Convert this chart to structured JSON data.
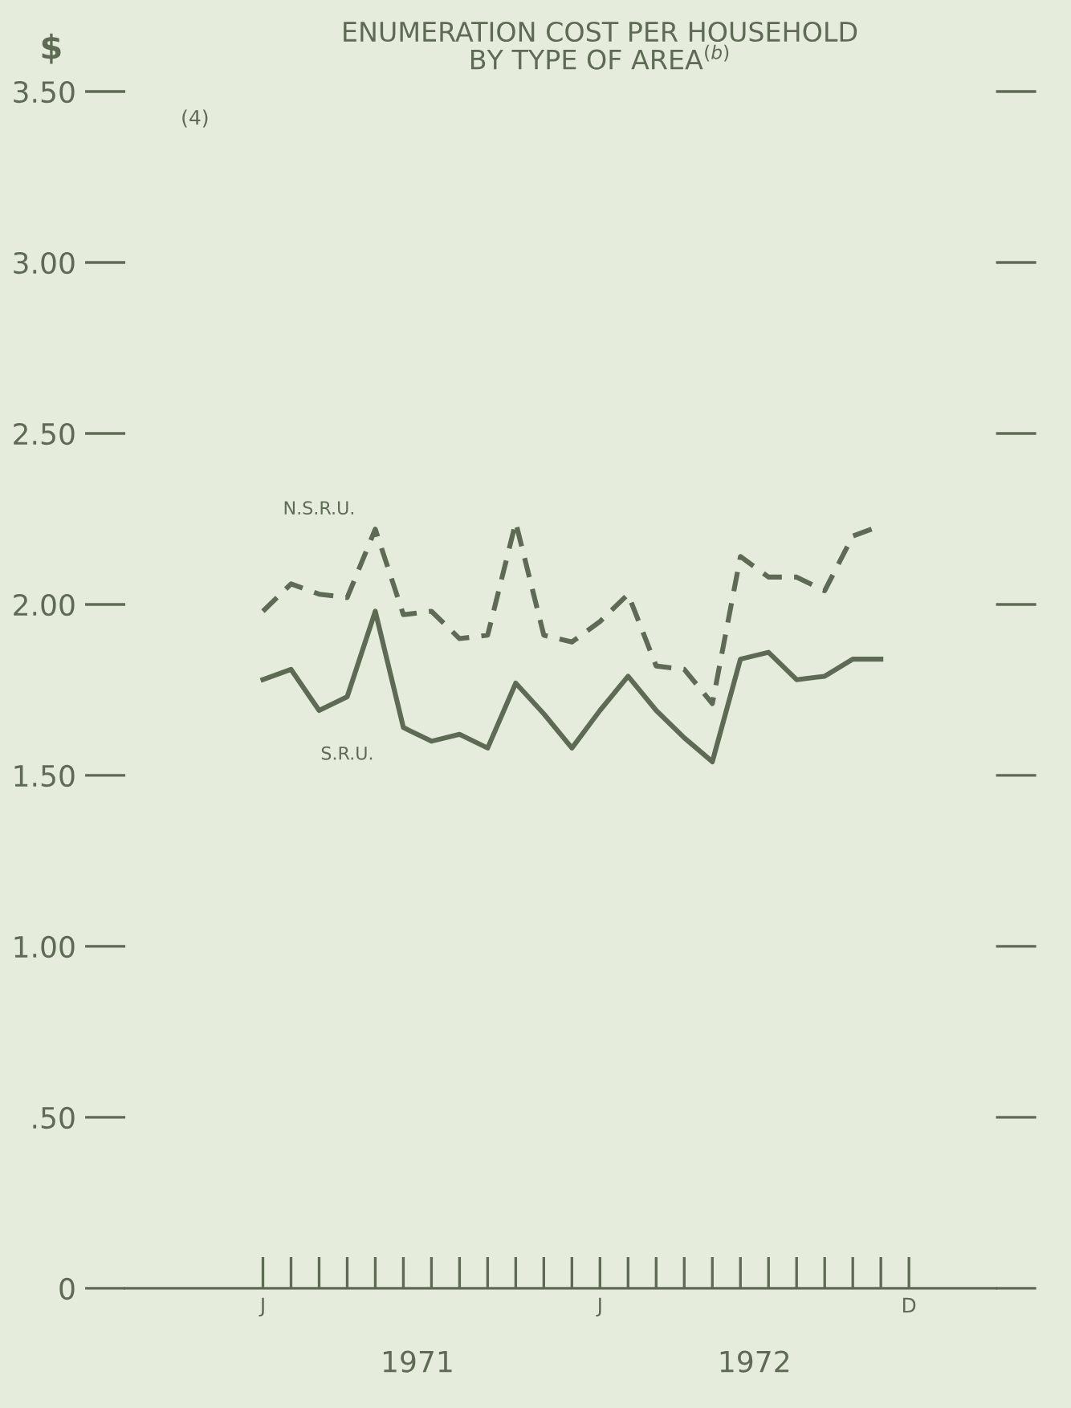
{
  "chart_data": {
    "type": "line",
    "title": "ENUMERATION COST PER HOUSEHOLD\nBY TYPE OF AREA$^{(b)}$",
    "ylabel": "$",
    "annotations": [
      "(4)",
      "1971",
      "1972"
    ],
    "categories": [
      "J",
      null,
      null,
      null,
      null,
      null,
      null,
      null,
      null,
      null,
      null,
      null,
      "J",
      null,
      null,
      null,
      null,
      null,
      null,
      null,
      null,
      null,
      null,
      "D"
    ],
    "series": [
      {
        "name": "N.S.R.U.",
        "color": "#5f6a55",
        "line_style": "dashed",
        "values": [
          1.98,
          2.06,
          2.03,
          2.02,
          2.22,
          1.97,
          1.98,
          1.9,
          1.91,
          2.24,
          1.91,
          1.89,
          1.95,
          2.03,
          1.82,
          1.81,
          1.71,
          2.14,
          2.08,
          2.08,
          2.04,
          2.2,
          2.23,
          null
        ]
      },
      {
        "name": "S.R.U.",
        "color": "#5f6a55",
        "line_style": "solid",
        "values": [
          1.78,
          1.81,
          1.69,
          1.73,
          1.98,
          1.64,
          1.6,
          1.62,
          1.58,
          1.77,
          1.68,
          1.58,
          1.69,
          1.79,
          1.69,
          1.61,
          1.54,
          1.84,
          1.86,
          1.78,
          1.79,
          1.84,
          1.84,
          null
        ]
      }
    ],
    "ylim": [
      0,
      3.5
    ],
    "yticks": [
      0,
      {
        "value": 0.5,
        "label": ".50"
      },
      {
        "value": 1,
        "label": "1.00"
      },
      {
        "value": 1.5,
        "label": "1.50"
      },
      {
        "value": 2,
        "label": "2.00"
      },
      {
        "value": 2.5,
        "label": "2.50"
      },
      {
        "value": 3,
        "label": "3.00"
      },
      {
        "value": 3.5,
        "label": "3.50"
      }
    ],
    "grid": false,
    "legend": false,
    "marker": "none"
  }
}
